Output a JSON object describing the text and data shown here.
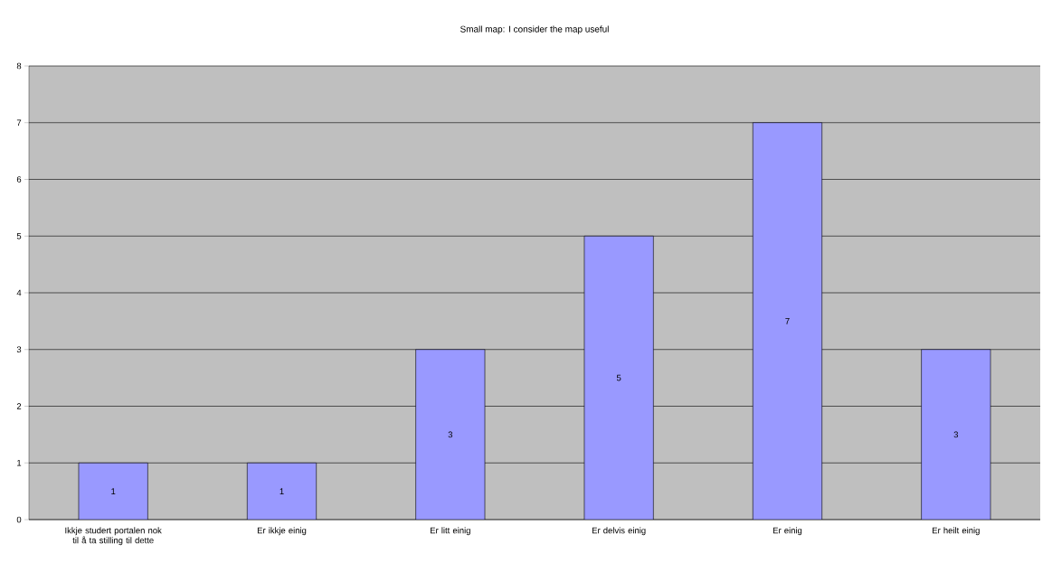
{
  "chart_data": {
    "type": "bar",
    "title": "Small map: I consider the map useful",
    "categories": [
      "Ikkje studert portalen nok til å ta stilling til dette",
      "Er ikkje einig",
      "Er litt einig",
      "Er delvis einig",
      "Er einig",
      "Er heilt einig"
    ],
    "values": [
      1,
      1,
      3,
      5,
      7,
      3
    ],
    "color": "#9999ff",
    "ylim": [
      0,
      8
    ],
    "yticks": [
      0,
      1,
      2,
      3,
      4,
      5,
      6,
      7,
      8
    ],
    "grid": "y",
    "data_labels": true
  }
}
